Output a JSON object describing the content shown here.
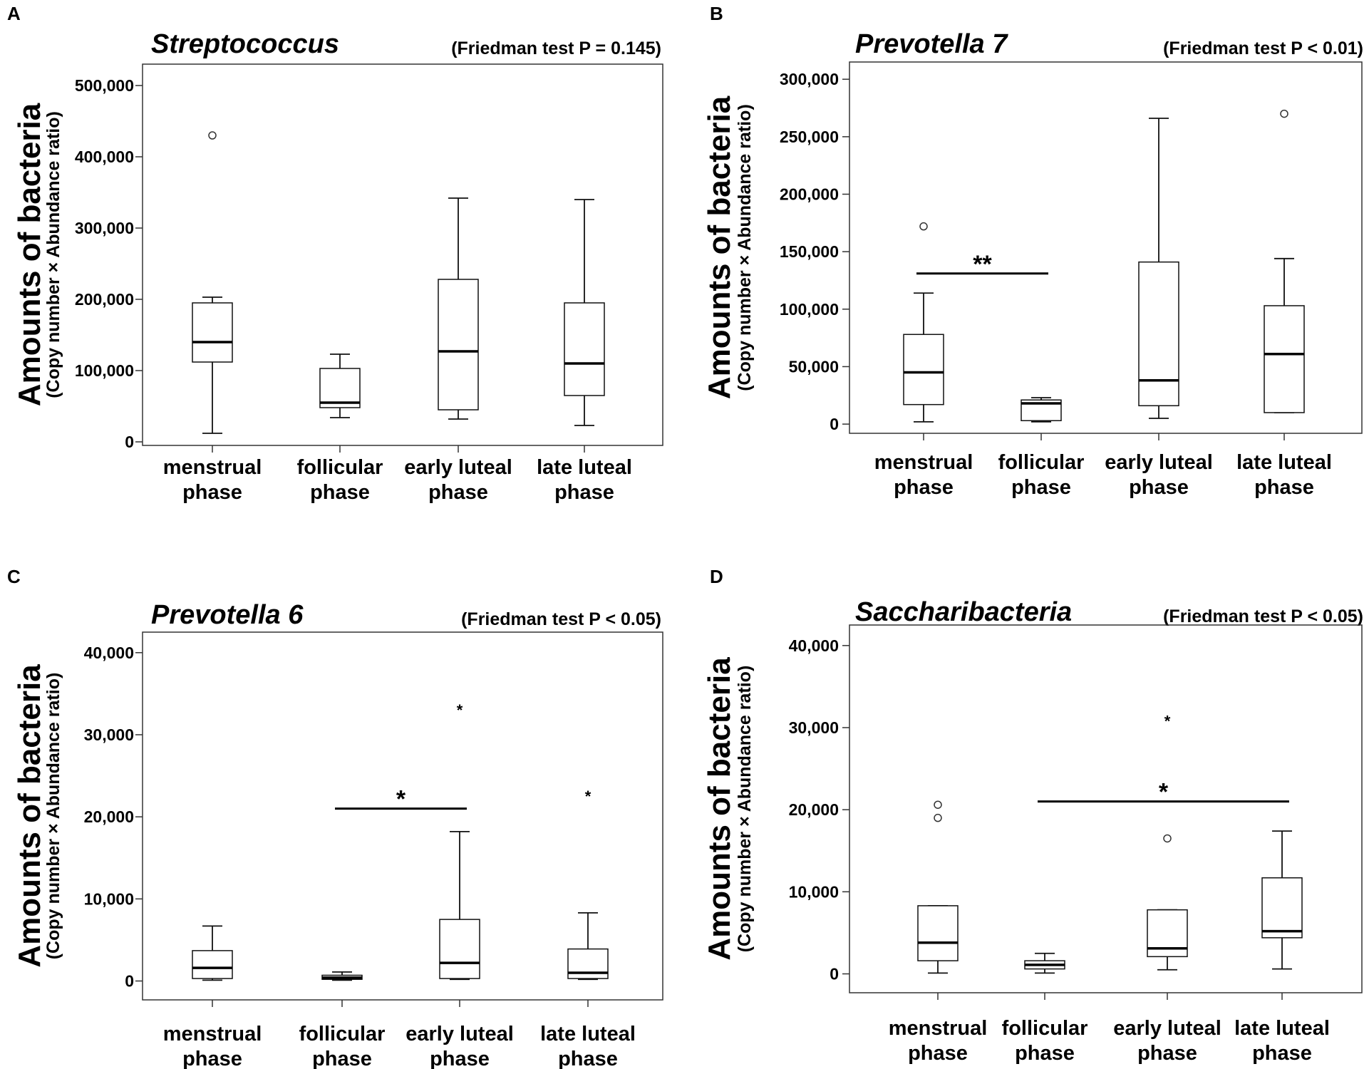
{
  "chart_data": [
    {
      "panel": "A",
      "type": "boxplot",
      "title": "Streptococcus",
      "subtitle": "(Friedman test P = 0.145)",
      "ylabel": "Amounts of bacteria",
      "ylabel_sub": "(Copy number × Abundance ratio)",
      "xlabel": "",
      "categories": [
        [
          "menstrual",
          "phase"
        ],
        [
          "follicular",
          "phase"
        ],
        [
          "early luteal",
          "phase"
        ],
        [
          "late luteal",
          "phase"
        ]
      ],
      "ylim": [
        -5000,
        530000
      ],
      "yticks": [
        0,
        100000,
        200000,
        300000,
        400000,
        500000
      ],
      "ytick_labels": [
        "0",
        "100,000",
        "200,000",
        "300,000",
        "400,000",
        "500,000"
      ],
      "boxes": [
        {
          "whisker_low": 12000,
          "q1": 112000,
          "median": 140000,
          "q3": 195000,
          "whisker_high": 203000,
          "outliers": [
            {
              "value": 430000,
              "marker": "circle"
            }
          ]
        },
        {
          "whisker_low": 34000,
          "q1": 48000,
          "median": 55000,
          "q3": 103000,
          "whisker_high": 123000,
          "outliers": []
        },
        {
          "whisker_low": 32000,
          "q1": 45000,
          "median": 127000,
          "q3": 228000,
          "whisker_high": 342000,
          "outliers": []
        },
        {
          "whisker_low": 23000,
          "q1": 65000,
          "median": 110000,
          "q3": 195000,
          "whisker_high": 340000,
          "outliers": []
        }
      ],
      "significance": []
    },
    {
      "panel": "B",
      "type": "boxplot",
      "title": "Prevotella 7",
      "subtitle": "(Friedman test P < 0.01)",
      "ylabel": "Amounts of bacteria",
      "ylabel_sub": "(Copy number × Abundance ratio)",
      "xlabel": "",
      "categories": [
        [
          "menstrual",
          "phase"
        ],
        [
          "follicular",
          "phase"
        ],
        [
          "early luteal",
          "phase"
        ],
        [
          "late luteal",
          "phase"
        ]
      ],
      "ylim": [
        -8000,
        315000
      ],
      "yticks": [
        0,
        50000,
        100000,
        150000,
        200000,
        250000,
        300000
      ],
      "ytick_labels": [
        "0",
        "50,000",
        "100,000",
        "150,000",
        "200,000",
        "250,000",
        "300,000"
      ],
      "boxes": [
        {
          "whisker_low": 2000,
          "q1": 17000,
          "median": 45000,
          "q3": 78000,
          "whisker_high": 114000,
          "outliers": [
            {
              "value": 172000,
              "marker": "circle"
            }
          ]
        },
        {
          "whisker_low": 2000,
          "q1": 3000,
          "median": 18000,
          "q3": 21000,
          "whisker_high": 23000,
          "outliers": []
        },
        {
          "whisker_low": 5000,
          "q1": 16000,
          "median": 38000,
          "q3": 141000,
          "whisker_high": 266000,
          "outliers": []
        },
        {
          "whisker_low": 10000,
          "q1": 10000,
          "median": 61000,
          "q3": 103000,
          "whisker_high": 144000,
          "outliers": [
            {
              "value": 270000,
              "marker": "circle"
            }
          ]
        }
      ],
      "significance": [
        {
          "from": 0,
          "to": 1,
          "y": 131000,
          "label": "**"
        }
      ]
    },
    {
      "panel": "C",
      "type": "boxplot",
      "title": "Prevotella 6",
      "subtitle": "(Friedman test P < 0.05)",
      "ylabel": "Amounts of bacteria",
      "ylabel_sub": "(Copy number × Abundance ratio)",
      "xlabel": "",
      "categories": [
        [
          "menstrual",
          "phase"
        ],
        [
          "follicular",
          "phase"
        ],
        [
          "early luteal",
          "phase"
        ],
        [
          "late luteal",
          "phase"
        ]
      ],
      "ylim": [
        -2300,
        42500
      ],
      "yticks": [
        0,
        10000,
        20000,
        30000,
        40000
      ],
      "ytick_labels": [
        "0",
        "10,000",
        "20,000",
        "30,000",
        "40,000"
      ],
      "boxes": [
        {
          "whisker_low": 100,
          "q1": 300,
          "median": 1600,
          "q3": 3700,
          "whisker_high": 6700,
          "outliers": []
        },
        {
          "whisker_low": 100,
          "q1": 200,
          "median": 400,
          "q3": 700,
          "whisker_high": 1100,
          "outliers": []
        },
        {
          "whisker_low": 200,
          "q1": 300,
          "median": 2200,
          "q3": 7500,
          "whisker_high": 18200,
          "outliers": [
            {
              "value": 33200,
              "marker": "star"
            }
          ]
        },
        {
          "whisker_low": 200,
          "q1": 300,
          "median": 1000,
          "q3": 3900,
          "whisker_high": 8300,
          "outliers": [
            {
              "value": 22700,
              "marker": "star"
            }
          ]
        }
      ],
      "significance": [
        {
          "from": 1,
          "to": 2,
          "y": 21000,
          "label": "*"
        }
      ]
    },
    {
      "panel": "D",
      "type": "boxplot",
      "title": "Saccharibacteria",
      "subtitle": "(Friedman test P < 0.05)",
      "ylabel": "Amounts of bacteria",
      "ylabel_sub": "(Copy number × Abundance ratio)",
      "xlabel": "",
      "categories": [
        [
          "menstrual",
          "phase"
        ],
        [
          "follicular",
          "phase"
        ],
        [
          "early luteal",
          "phase"
        ],
        [
          "late luteal",
          "phase"
        ]
      ],
      "ylim": [
        -2300,
        42500
      ],
      "yticks": [
        0,
        10000,
        20000,
        30000,
        40000
      ],
      "ytick_labels": [
        "0",
        "10,000",
        "20,000",
        "30,000",
        "40,000"
      ],
      "boxes": [
        {
          "whisker_low": 100,
          "q1": 1600,
          "median": 3800,
          "q3": 8300,
          "whisker_high": 8300,
          "outliers": [
            {
              "value": 19000,
              "marker": "circle"
            },
            {
              "value": 20600,
              "marker": "circle"
            }
          ]
        },
        {
          "whisker_low": 100,
          "q1": 600,
          "median": 1100,
          "q3": 1600,
          "whisker_high": 2500,
          "outliers": []
        },
        {
          "whisker_low": 500,
          "q1": 2100,
          "median": 3100,
          "q3": 7800,
          "whisker_high": 7800,
          "outliers": [
            {
              "value": 16500,
              "marker": "circle"
            },
            {
              "value": 31000,
              "marker": "star"
            }
          ]
        },
        {
          "whisker_low": 600,
          "q1": 4400,
          "median": 5200,
          "q3": 11700,
          "whisker_high": 17400,
          "outliers": []
        }
      ],
      "significance": [
        {
          "from": 1,
          "to": 3,
          "y": 21000,
          "label": "*"
        }
      ]
    }
  ]
}
